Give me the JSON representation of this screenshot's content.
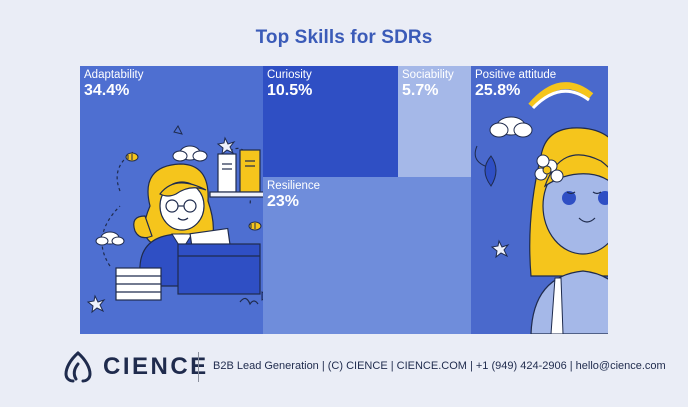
{
  "page": {
    "title": "Top Skills for SDRs"
  },
  "chart_data": {
    "type": "treemap",
    "title": "Top Skills for SDRs",
    "items": [
      {
        "label": "Adaptability",
        "value": 34.4,
        "value_label": "34.4%",
        "color": "#4e6fd1"
      },
      {
        "label": "Curiosity",
        "value": 10.5,
        "value_label": "10.5%",
        "color": "#2f4fc4"
      },
      {
        "label": "Sociability",
        "value": 5.7,
        "value_label": "5.7%",
        "color": "#a5b8e8"
      },
      {
        "label": "Resilience",
        "value": 23,
        "value_label": "23%",
        "color": "#6f8ddb"
      },
      {
        "label": "Positive attitude",
        "value": 25.8,
        "value_label": "25.8%",
        "color": "#4a69cc"
      }
    ]
  },
  "footer": {
    "brand": "CIENCE",
    "contact": "B2B Lead Generation | (C) CIENCE | CIENCE.COM | +1 (949) 424-2906 | hello@cience.com",
    "brand_color": "#1f2b4d"
  },
  "illustrations": {
    "adaptability": "sdr-woman-with-paperwork-illustration",
    "positive_attitude": "smiling-woman-with-flower-illustration"
  }
}
